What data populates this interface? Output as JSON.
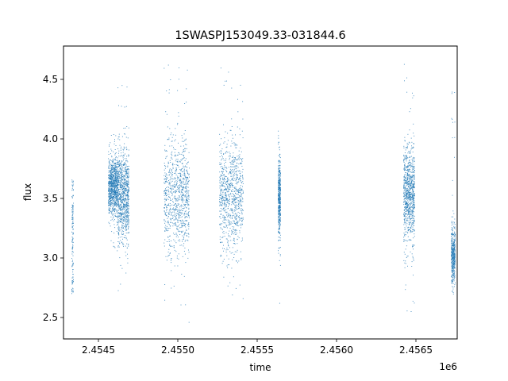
{
  "chart_data": {
    "type": "scatter",
    "title": "1SWASPJ153049.33-031844.6",
    "xlabel": "time",
    "ylabel": "flux",
    "x_offset_label": "1e6",
    "xlim": [
      2454280,
      2456760
    ],
    "ylim": [
      2.32,
      4.78
    ],
    "x_ticks": [
      2454500,
      2455000,
      2455500,
      2456000,
      2456500
    ],
    "x_tick_labels": [
      "2.4545",
      "2.4550",
      "2.4555",
      "2.4560",
      "2.4565"
    ],
    "y_ticks": [
      2.5,
      3.0,
      3.5,
      4.0,
      4.5
    ],
    "y_tick_labels": [
      "2.5",
      "3.0",
      "3.5",
      "4.0",
      "4.5"
    ],
    "grid": false,
    "marker_color": "#1f77b4",
    "clusters": [
      {
        "x_start": 2454330,
        "x_end": 2454340,
        "y_center": 3.2,
        "y_spread": 0.3,
        "y_min": 2.7,
        "y_max": 3.66,
        "density": 0.15
      },
      {
        "x_start": 2454560,
        "x_end": 2454620,
        "y_center": 3.6,
        "y_spread": 0.12,
        "y_min": 3.0,
        "y_max": 4.1,
        "density": 1.0
      },
      {
        "x_start": 2454620,
        "x_end": 2454690,
        "y_center": 3.52,
        "y_spread": 0.2,
        "y_min": 2.6,
        "y_max": 4.63,
        "density": 1.0
      },
      {
        "x_start": 2454910,
        "x_end": 2455070,
        "y_center": 3.52,
        "y_spread": 0.24,
        "y_min": 2.43,
        "y_max": 4.67,
        "density": 1.0
      },
      {
        "x_start": 2455260,
        "x_end": 2455410,
        "y_center": 3.53,
        "y_spread": 0.22,
        "y_min": 2.43,
        "y_max": 4.64,
        "density": 1.0
      },
      {
        "x_start": 2455630,
        "x_end": 2455645,
        "y_center": 3.5,
        "y_spread": 0.18,
        "y_min": 2.6,
        "y_max": 4.25,
        "density": 0.5
      },
      {
        "x_start": 2456420,
        "x_end": 2456490,
        "y_center": 3.55,
        "y_spread": 0.2,
        "y_min": 2.55,
        "y_max": 4.65,
        "density": 1.0
      },
      {
        "x_start": 2456720,
        "x_end": 2456745,
        "y_center": 3.02,
        "y_spread": 0.12,
        "y_min": 2.7,
        "y_max": 4.43,
        "density": 0.5
      }
    ]
  }
}
